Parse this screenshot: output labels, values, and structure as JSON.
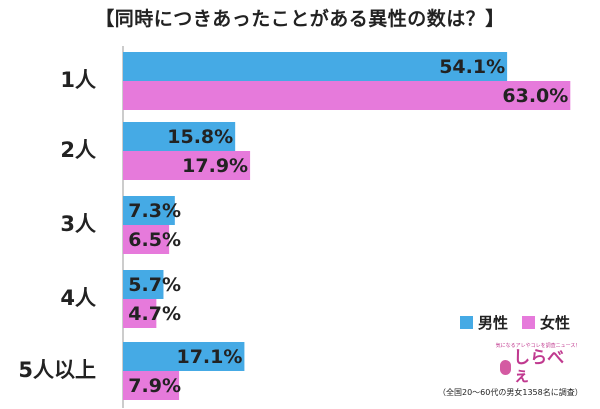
{
  "chart_data": {
    "type": "bar",
    "orientation": "horizontal",
    "title": "【同時につきあったことがある異性の数は？】",
    "categories": [
      "1人",
      "2人",
      "3人",
      "4人",
      "5人以上"
    ],
    "series": [
      {
        "name": "男性",
        "color": "#45aae5",
        "values": [
          54.1,
          15.8,
          7.3,
          5.7,
          17.1
        ],
        "labels": [
          "54.1%",
          "15.8%",
          "7.3%",
          "5.7%",
          "17.1%"
        ]
      },
      {
        "name": "女性",
        "color": "#e67adb",
        "values": [
          63.0,
          17.9,
          6.5,
          4.7,
          7.9
        ],
        "labels": [
          "63.0%",
          "17.9%",
          "6.5%",
          "4.7%",
          "7.9%"
        ]
      }
    ],
    "xlim": [
      0,
      70
    ],
    "legend_position": "bottom-right",
    "grid": false
  },
  "logo": {
    "tagline": "気になるアレやコレを調査ニュース！",
    "name": "しらべぇ"
  },
  "footnote": "（全国20～60代の男女1358名に調査）"
}
